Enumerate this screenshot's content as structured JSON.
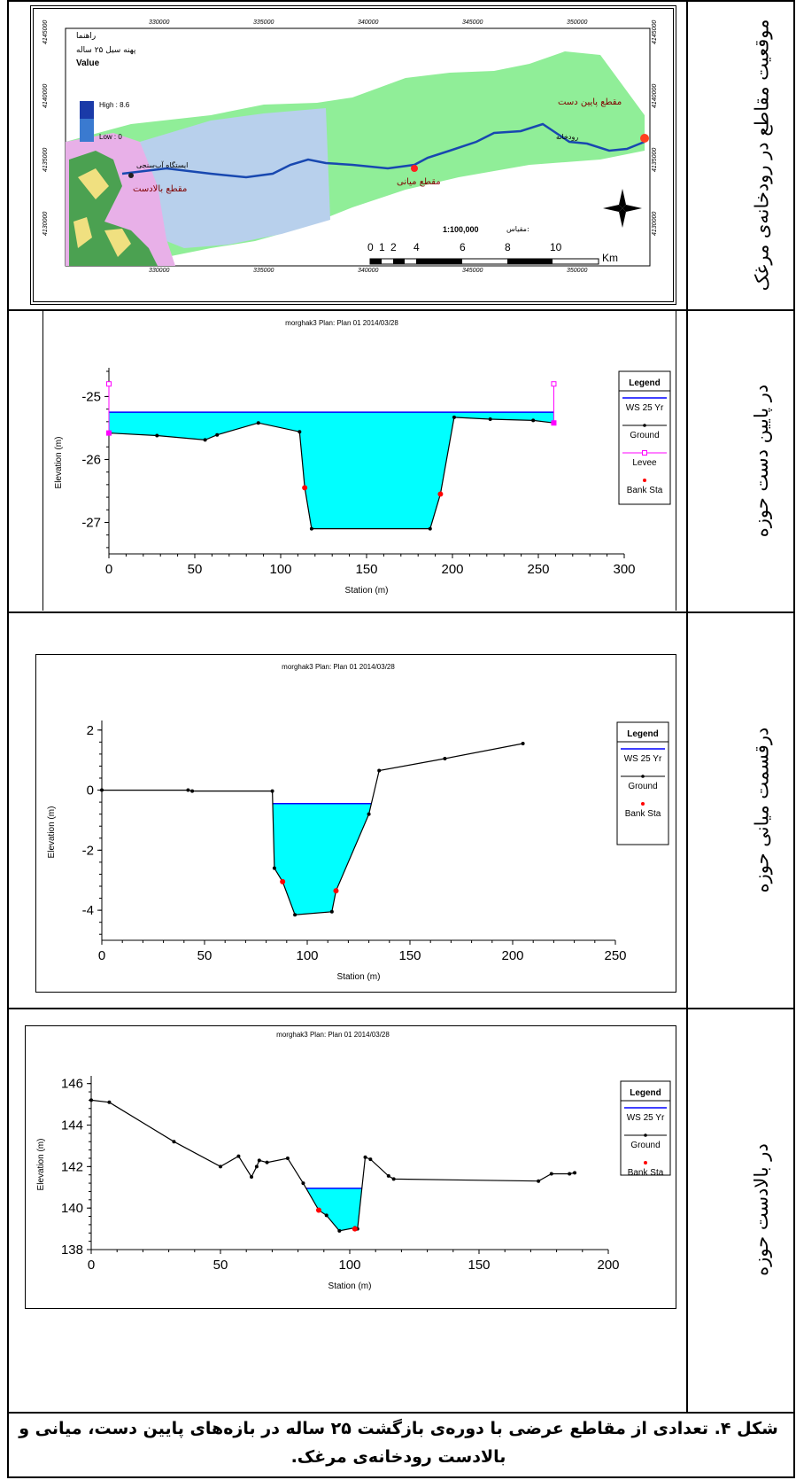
{
  "row_labels": {
    "map": "موقعیت مقاطع در رودخانه‌ی مرغک",
    "downstream": "در پایین دست حوزه",
    "middle": "درقسمت میانی حوزه",
    "upstream": "در بالادست حوزه"
  },
  "caption": {
    "line1": "شکل ۴. تعدادی از مقاطع عرضی با دوره‌ی بازگشت ۲۵ ساله در بازه‌های پایین دست، میانی و",
    "line2": "بالادست رودخانه‌ی مرغک."
  },
  "map": {
    "legend_title1": "راهنما",
    "legend_title2": "پهنه سیل ۲۵ ساله",
    "value_label": "Value",
    "high_label": "High : 8.6",
    "low_label": "Low : 0",
    "label_downstream": "مقطع پایین دست",
    "label_middle": "مقطع میانی",
    "label_upstream": "مقطع بالادست",
    "label_river": "رودخانه",
    "label_station": "ایستگاه آب‌سنجی",
    "scale_text": "1:100,000",
    "scale_prefix": "مقیاس:",
    "scale_ticks": [
      "0",
      "1",
      "2",
      "4",
      "6",
      "8",
      "10"
    ],
    "scale_unit": "Km",
    "top_coords": [
      "330000",
      "335000",
      "340000",
      "345000",
      "350000"
    ],
    "side_coords": [
      "4145000",
      "4140000",
      "4135000",
      "4130000"
    ],
    "colors": {
      "hills": "#e8b0e8",
      "floodplain": "#b8d0ec",
      "basin": "#90ee98",
      "river": "#1848b0"
    }
  },
  "chart_data": [
    {
      "type": "line",
      "title": "morghak3      Plan: Plan 01    2014/03/28",
      "xlabel": "Station (m)",
      "ylabel": "Elevation (m)",
      "xlim": [
        0,
        300
      ],
      "ylim": [
        -27.5,
        -24.6
      ],
      "xticks": [
        0,
        50,
        100,
        150,
        200,
        250,
        300
      ],
      "yticks": [
        -25,
        -26,
        -27
      ],
      "ws": -25.25,
      "ground": {
        "x": [
          0,
          28,
          56,
          63,
          87,
          111,
          114,
          118,
          187,
          193,
          201,
          222,
          247,
          259
        ],
        "y": [
          -25.58,
          -25.62,
          -25.69,
          -25.61,
          -25.42,
          -25.56,
          -26.45,
          -27.1,
          -27.1,
          -26.55,
          -25.33,
          -25.36,
          -25.38,
          -25.42
        ]
      },
      "bank_sta": {
        "x": [
          114,
          193
        ],
        "y": [
          -26.45,
          -26.55
        ]
      },
      "levee": {
        "x": [
          0,
          259
        ],
        "y": [
          -24.8,
          -24.8
        ]
      },
      "legend": {
        "title": "Legend",
        "items": [
          "WS 25 Yr",
          "Ground",
          "Levee",
          "Bank Sta"
        ]
      },
      "series_colors": {
        "ws": "#0000ff",
        "ground": "#000000",
        "levee": "#ff00ff",
        "bank": "#ff0000",
        "water": "#00ffff"
      }
    },
    {
      "type": "line",
      "title": "morghak3      Plan: Plan 01    2014/03/28",
      "xlabel": "Station (m)",
      "ylabel": "Elevation (m)",
      "xlim": [
        0,
        250
      ],
      "ylim": [
        -5,
        2.2
      ],
      "xticks": [
        0,
        50,
        100,
        150,
        200,
        250
      ],
      "yticks": [
        2,
        0,
        -2,
        -4
      ],
      "ws": -0.45,
      "ground": {
        "x": [
          0,
          42,
          44,
          83,
          84,
          88,
          94,
          112,
          114,
          130,
          135,
          167,
          205
        ],
        "y": [
          0,
          0,
          -0.03,
          -0.03,
          -2.6,
          -3.05,
          -4.15,
          -4.05,
          -3.35,
          -0.8,
          0.65,
          1.05,
          1.55
        ]
      },
      "bank_sta": {
        "x": [
          88,
          114
        ],
        "y": [
          -3.05,
          -3.35
        ]
      },
      "legend": {
        "title": "Legend",
        "items": [
          "WS 25 Yr",
          "Ground",
          "Bank Sta"
        ]
      },
      "series_colors": {
        "ws": "#0000ff",
        "ground": "#000000",
        "bank": "#ff0000",
        "water": "#00ffff"
      }
    },
    {
      "type": "line",
      "title": "morghak3      Plan: Plan 01    2014/03/28",
      "xlabel": "Station (m)",
      "ylabel": "Elevation (m)",
      "xlim": [
        0,
        200
      ],
      "ylim": [
        138,
        146.2
      ],
      "xticks": [
        0,
        50,
        100,
        150,
        200
      ],
      "yticks": [
        146,
        144,
        142,
        140,
        138
      ],
      "ws": 140.95,
      "ground": {
        "x": [
          0,
          7,
          32,
          50,
          57,
          62,
          64,
          65,
          68,
          76,
          82,
          88,
          91,
          96,
          102,
          103,
          106,
          108,
          115,
          117,
          173,
          178,
          185,
          187
        ],
        "y": [
          145.2,
          145.1,
          143.2,
          142,
          142.5,
          141.5,
          142.0,
          142.3,
          142.2,
          142.4,
          141.2,
          139.9,
          139.65,
          138.9,
          139.05,
          139.0,
          142.45,
          142.35,
          141.55,
          141.4,
          141.3,
          141.65,
          141.65,
          141.7
        ]
      },
      "bank_sta": {
        "x": [
          88,
          102
        ],
        "y": [
          139.9,
          139.0
        ]
      },
      "legend": {
        "title": "Legend",
        "items": [
          "WS 25 Yr",
          "Ground",
          "Bank Sta"
        ]
      },
      "series_colors": {
        "ws": "#0000ff",
        "ground": "#000000",
        "bank": "#ff0000",
        "water": "#00ffff"
      }
    }
  ]
}
